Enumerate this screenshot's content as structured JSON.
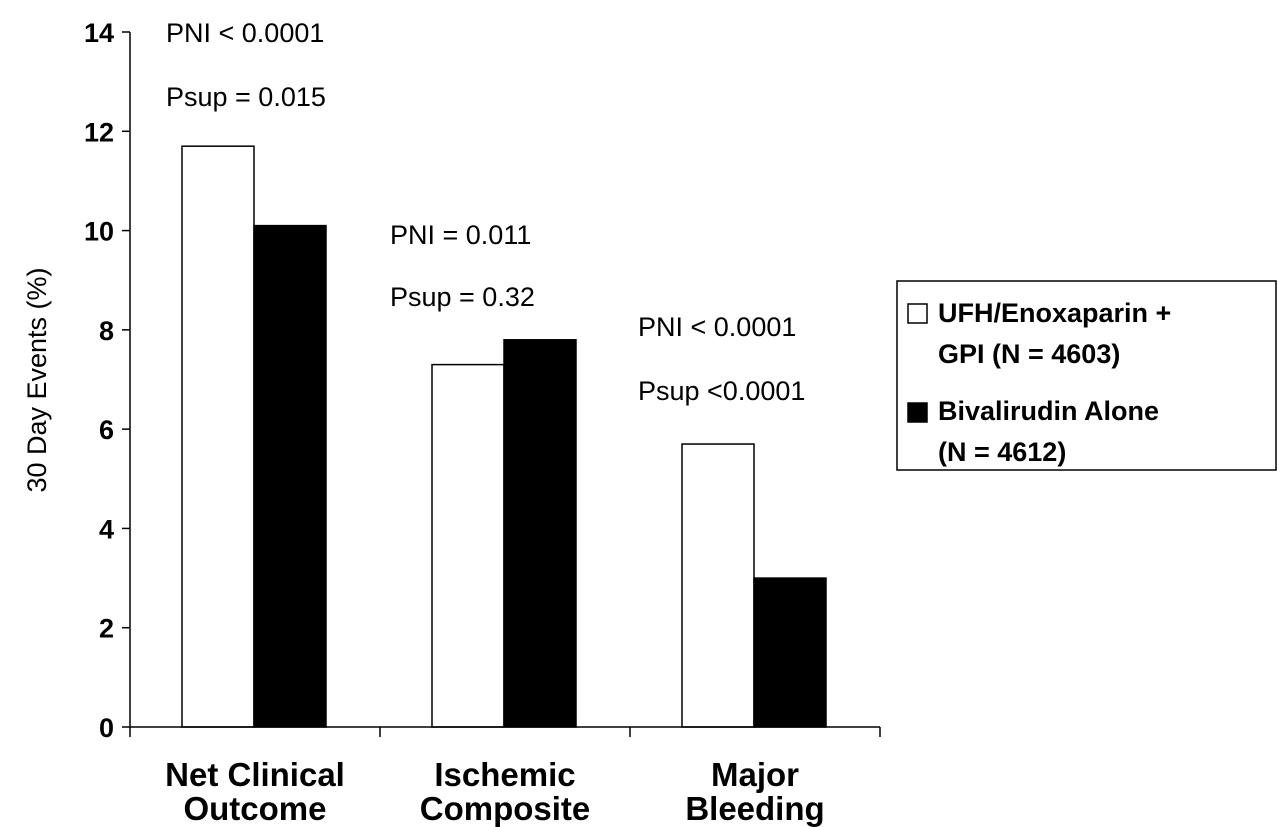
{
  "chart_data": {
    "type": "bar",
    "categories": [
      [
        "Net Clinical",
        "Outcome"
      ],
      [
        "Ischemic",
        "Composite"
      ],
      [
        "Major",
        "Bleeding"
      ]
    ],
    "series": [
      {
        "name": "UFH/Enoxaparin + GPI (N = 4603)",
        "legend_lines": [
          "UFH/Enoxaparin +",
          "GPI (N = 4603)"
        ],
        "fill": "#ffffff",
        "values": [
          11.7,
          7.3,
          5.7
        ]
      },
      {
        "name": "Bivalirudin Alone (N = 4612)",
        "legend_lines": [
          "Bivalirudin Alone",
          "(N = 4612)"
        ],
        "fill": "#000000",
        "values": [
          10.1,
          7.8,
          3.0
        ]
      }
    ],
    "ylabel": "30 Day Events (%)",
    "ylim": [
      0,
      14
    ],
    "yticks": [
      "0",
      "2",
      "4",
      "6",
      "8",
      "10",
      "12",
      "14"
    ],
    "grid": false,
    "legend_position": "right",
    "annotations": [
      [
        "PNI < 0.0001",
        "Psup = 0.015"
      ],
      [
        "PNI = 0.011",
        "Psup = 0.32"
      ],
      [
        "PNI < 0.0001",
        "Psup <0.0001"
      ]
    ]
  }
}
